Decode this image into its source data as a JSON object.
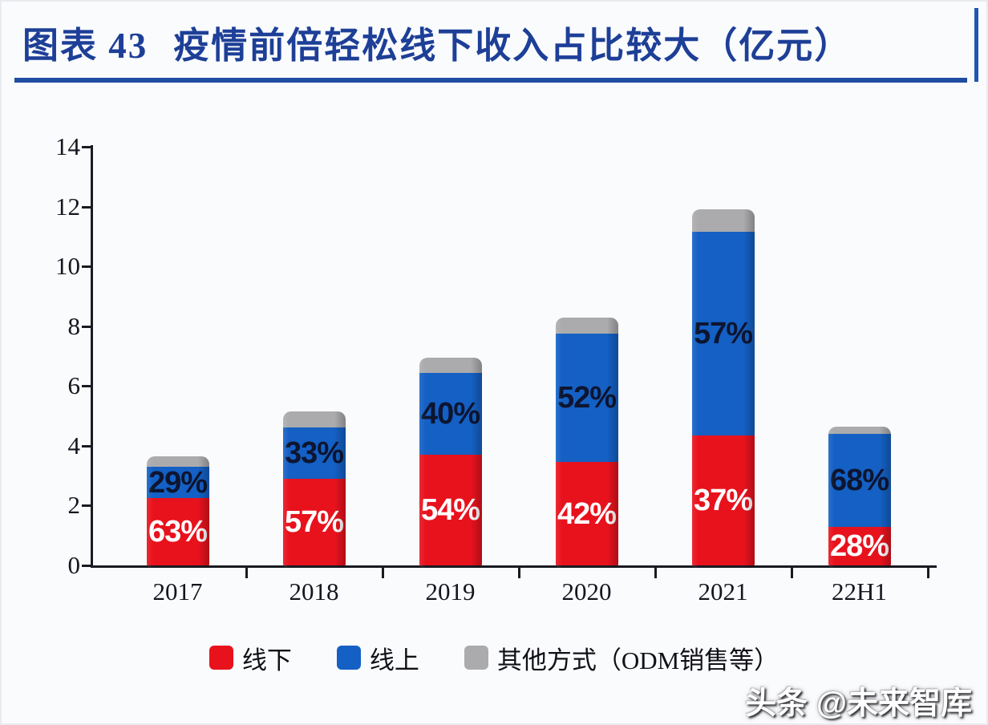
{
  "page": {
    "background": "#fafbfd",
    "watermark": "头条 @未来智库"
  },
  "header": {
    "label": "图表 43",
    "title": "疫情前倍轻松线下收入占比较大（亿元）",
    "title_color": "#1d3f97",
    "rule_color": "#1f4da1"
  },
  "chart_data": {
    "type": "bar",
    "stacked": true,
    "title": "图表 43 疫情前倍轻松线下收入占比较大（亿元）",
    "unit": "亿元",
    "categories": [
      "2017",
      "2018",
      "2019",
      "2020",
      "2021",
      "22H1"
    ],
    "series": [
      {
        "id": "offline",
        "name": "线下",
        "color": "#e8121d",
        "label_color": "#ffffff",
        "values": [
          2.25,
          2.9,
          3.7,
          3.45,
          4.35,
          1.3
        ],
        "labels": [
          "63%",
          "57%",
          "54%",
          "42%",
          "37%",
          "28%"
        ]
      },
      {
        "id": "online",
        "name": "线上",
        "color": "#1460c4",
        "label_color": "#0d1530",
        "values": [
          1.05,
          1.7,
          2.75,
          4.3,
          6.8,
          3.1
        ],
        "labels": [
          "29%",
          "33%",
          "40%",
          "52%",
          "57%",
          "68%"
        ]
      },
      {
        "id": "other",
        "name": "其他方式（ODM销售等）",
        "color": "#ababad",
        "label_color": "#333333",
        "values": [
          0.35,
          0.55,
          0.5,
          0.55,
          0.75,
          0.25
        ],
        "labels": [
          "",
          "",
          "",
          "",
          "",
          ""
        ]
      }
    ],
    "totals": [
      3.65,
      5.15,
      6.95,
      8.3,
      11.9,
      4.65
    ],
    "xlabel": "",
    "ylabel": "",
    "ylim": [
      0,
      14
    ],
    "yticks": [
      0,
      2,
      4,
      6,
      8,
      10,
      12,
      14
    ],
    "grid": false,
    "legend_position": "bottom",
    "axis_color": "#1a1a22"
  }
}
